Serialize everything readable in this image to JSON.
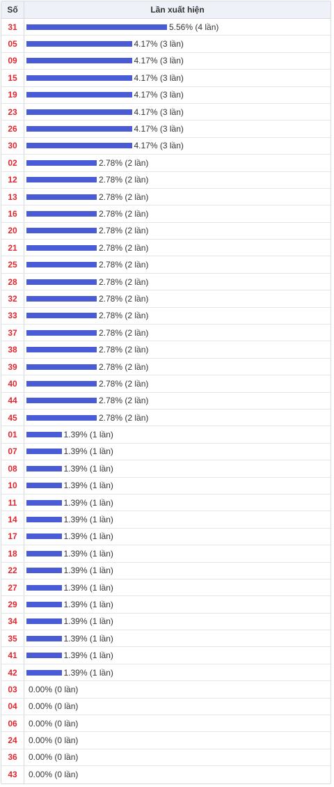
{
  "header": {
    "col_number": "Số",
    "col_freq": "Lần xuất hiện"
  },
  "colors": {
    "bar": "#4a5bd6",
    "number": "#e0262d"
  },
  "chart_data": {
    "type": "bar",
    "orientation": "horizontal",
    "categories": [
      "31",
      "05",
      "09",
      "15",
      "19",
      "23",
      "26",
      "30",
      "02",
      "12",
      "13",
      "16",
      "20",
      "21",
      "25",
      "28",
      "32",
      "33",
      "37",
      "38",
      "39",
      "40",
      "44",
      "45",
      "01",
      "07",
      "08",
      "10",
      "11",
      "14",
      "17",
      "18",
      "22",
      "27",
      "29",
      "34",
      "35",
      "41",
      "42",
      "03",
      "04",
      "06",
      "24",
      "36",
      "43"
    ],
    "values": [
      4,
      3,
      3,
      3,
      3,
      3,
      3,
      3,
      2,
      2,
      2,
      2,
      2,
      2,
      2,
      2,
      2,
      2,
      2,
      2,
      2,
      2,
      2,
      2,
      1,
      1,
      1,
      1,
      1,
      1,
      1,
      1,
      1,
      1,
      1,
      1,
      1,
      1,
      1,
      0,
      0,
      0,
      0,
      0,
      0
    ],
    "labels": [
      "5.56% (4 lần)",
      "4.17% (3 lần)",
      "4.17% (3 lần)",
      "4.17% (3 lần)",
      "4.17% (3 lần)",
      "4.17% (3 lần)",
      "4.17% (3 lần)",
      "4.17% (3 lần)",
      "2.78% (2 lần)",
      "2.78% (2 lần)",
      "2.78% (2 lần)",
      "2.78% (2 lần)",
      "2.78% (2 lần)",
      "2.78% (2 lần)",
      "2.78% (2 lần)",
      "2.78% (2 lần)",
      "2.78% (2 lần)",
      "2.78% (2 lần)",
      "2.78% (2 lần)",
      "2.78% (2 lần)",
      "2.78% (2 lần)",
      "2.78% (2 lần)",
      "2.78% (2 lần)",
      "2.78% (2 lần)",
      "1.39% (1 lần)",
      "1.39% (1 lần)",
      "1.39% (1 lần)",
      "1.39% (1 lần)",
      "1.39% (1 lần)",
      "1.39% (1 lần)",
      "1.39% (1 lần)",
      "1.39% (1 lần)",
      "1.39% (1 lần)",
      "1.39% (1 lần)",
      "1.39% (1 lần)",
      "1.39% (1 lần)",
      "1.39% (1 lần)",
      "1.39% (1 lần)",
      "1.39% (1 lần)",
      "0.00% (0 lần)",
      "0.00% (0 lần)",
      "0.00% (0 lần)",
      "0.00% (0 lần)",
      "0.00% (0 lần)",
      "0.00% (0 lần)"
    ],
    "xlim": [
      0,
      4
    ]
  }
}
